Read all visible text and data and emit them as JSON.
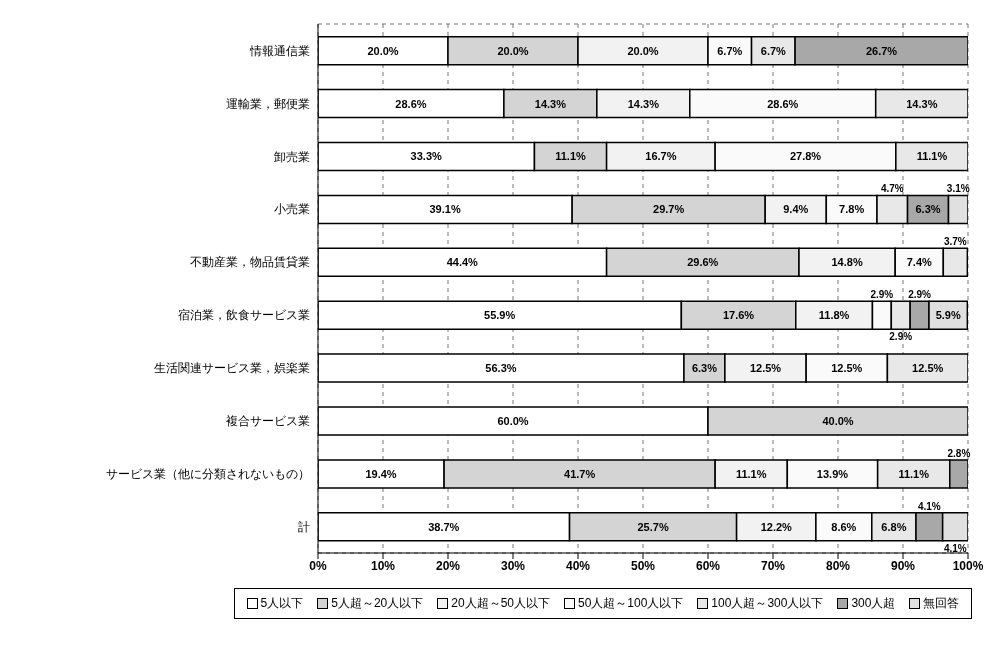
{
  "chart_data": {
    "type": "bar",
    "orientation": "horizontal",
    "stacked": true,
    "categories": [
      "情報通信業",
      "運輸業，郵便業",
      "卸売業",
      "小売業",
      "不動産業，物品賃貸業",
      "宿泊業，飲食サービス業",
      "生活関連サービス業，娯楽業",
      "複合サービス業",
      "サービス業（他に分類されないもの）",
      "計"
    ],
    "series": [
      {
        "name": "5人以下",
        "color": "#ffffff",
        "values": [
          20.0,
          28.6,
          33.3,
          39.1,
          44.4,
          55.9,
          56.3,
          60.0,
          19.4,
          38.7
        ],
        "value_labels": [
          "20.0%",
          "28.6%",
          "33.3%",
          "39.1%",
          "44.4%",
          "55.9%",
          "56.3%",
          "60.0%",
          "19.4%",
          "38.7%"
        ]
      },
      {
        "name": "5人超～20人以下",
        "color": "#d4d4d4",
        "values": [
          20.0,
          14.3,
          11.1,
          29.7,
          29.6,
          17.6,
          6.3,
          40.0,
          41.7,
          25.7
        ],
        "value_labels": [
          "20.0%",
          "14.3%",
          "11.1%",
          "29.7%",
          "29.6%",
          "17.6%",
          "6.3%",
          "40.0%",
          "41.7%",
          "25.7%"
        ]
      },
      {
        "name": "20人超～50人以下",
        "color": "#f2f2f2",
        "values": [
          20.0,
          14.3,
          16.7,
          9.4,
          14.8,
          11.8,
          12.5,
          null,
          11.1,
          12.2
        ],
        "value_labels": [
          "20.0%",
          "14.3%",
          "16.7%",
          "9.4%",
          "14.8%",
          "11.8%",
          "12.5%",
          null,
          "11.1%",
          "12.2%"
        ]
      },
      {
        "name": "50人超～100人以下",
        "color": "#fafafa",
        "values": [
          6.7,
          28.6,
          27.8,
          7.8,
          7.4,
          2.9,
          12.5,
          null,
          13.9,
          8.6
        ],
        "value_labels": [
          "6.7%",
          "28.6%",
          "27.8%",
          "7.8%",
          "7.4%",
          "2.9%",
          "12.5%",
          null,
          "13.9%",
          "8.6%"
        ]
      },
      {
        "name": "100人超～300人以下",
        "color": "#e8e8e8",
        "values": [
          6.7,
          14.3,
          11.1,
          4.7,
          3.7,
          2.9,
          12.5,
          null,
          11.1,
          6.8
        ],
        "value_labels": [
          "6.7%",
          "14.3%",
          "11.1%",
          "4.7%",
          "3.7%",
          "2.9%",
          "12.5%",
          null,
          "11.1%",
          "6.8%"
        ]
      },
      {
        "name": "300人超",
        "color": "#a8a8a8",
        "values": [
          26.7,
          null,
          null,
          6.3,
          null,
          2.9,
          null,
          null,
          2.8,
          4.1
        ],
        "value_labels": [
          "26.7%",
          null,
          null,
          "6.3%",
          null,
          "2.9%",
          null,
          null,
          "2.8%",
          "4.1%"
        ]
      },
      {
        "name": "無回答",
        "color": "#e0e0e0",
        "values": [
          null,
          null,
          null,
          3.1,
          null,
          5.9,
          null,
          null,
          null,
          4.1
        ],
        "value_labels": [
          null,
          null,
          null,
          "3.1%",
          null,
          "5.9%",
          null,
          null,
          null,
          "4.1%"
        ]
      }
    ],
    "xlim": [
      0,
      100
    ],
    "xticks": [
      {
        "value": 0,
        "label": "0%"
      },
      {
        "value": 10,
        "label": "10%"
      },
      {
        "value": 20,
        "label": "20%"
      },
      {
        "value": 30,
        "label": "30%"
      },
      {
        "value": 40,
        "label": "40%"
      },
      {
        "value": 50,
        "label": "50%"
      },
      {
        "value": 60,
        "label": "60%"
      },
      {
        "value": 70,
        "label": "70%"
      },
      {
        "value": 80,
        "label": "80%"
      },
      {
        "value": 90,
        "label": "90%"
      },
      {
        "value": 100,
        "label": "100%"
      }
    ],
    "grid": true,
    "legend": "bottom"
  }
}
